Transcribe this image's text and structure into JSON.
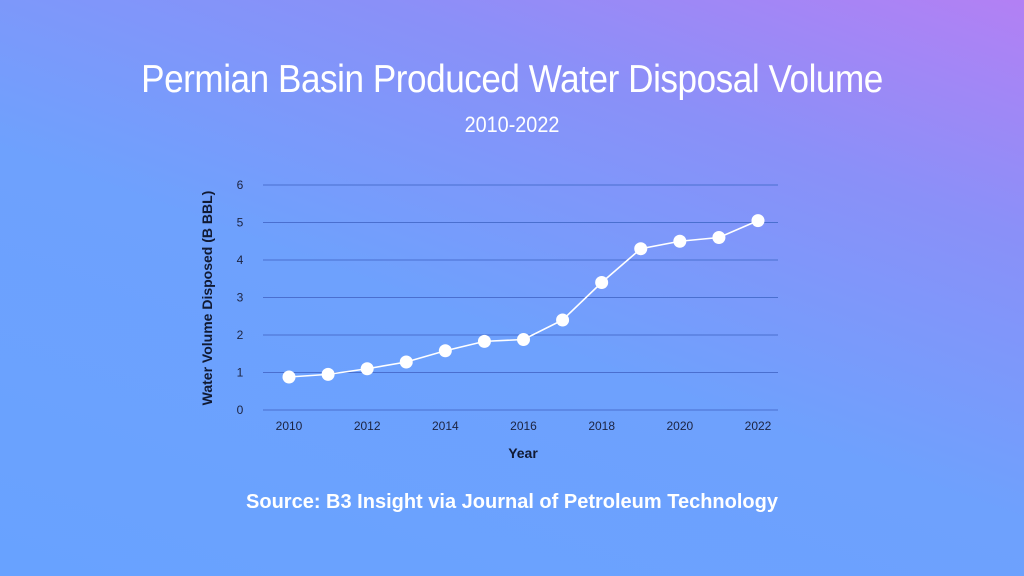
{
  "header": {
    "title": "Permian Basin Produced Water Disposal Volume",
    "subtitle": "2010-2022"
  },
  "footer": {
    "source": "Source: B3 Insight via Journal of Petroleum Technology"
  },
  "colors": {
    "background_start": "#68a2ff",
    "background_end": "#b380f4",
    "line": "#ffffff",
    "marker": "#ffffff",
    "gridline": "#4a6fcf",
    "text": "#ffffff",
    "axis_text": "#1c2340"
  },
  "chart_data": {
    "type": "line",
    "title": "Permian Basin Produced Water Disposal Volume",
    "subtitle": "2010-2022",
    "xlabel": "Year",
    "ylabel": "Water Volume Disposed (B BBL)",
    "x": [
      2010,
      2011,
      2012,
      2013,
      2014,
      2015,
      2016,
      2017,
      2018,
      2019,
      2020,
      2021,
      2022
    ],
    "series": [
      {
        "name": "Water Volume Disposed",
        "values": [
          0.88,
          0.95,
          1.1,
          1.28,
          1.58,
          1.83,
          1.88,
          2.4,
          3.4,
          4.3,
          4.5,
          4.6,
          5.05
        ]
      }
    ],
    "xticks": [
      "2010",
      "2012",
      "2014",
      "2016",
      "2018",
      "2020",
      "2022"
    ],
    "yticks": [
      "0",
      "1",
      "2",
      "3",
      "4",
      "5",
      "6"
    ],
    "xlim": [
      2010,
      2022
    ],
    "ylim": [
      0,
      6
    ],
    "grid": "horizontal",
    "legend": "none"
  }
}
